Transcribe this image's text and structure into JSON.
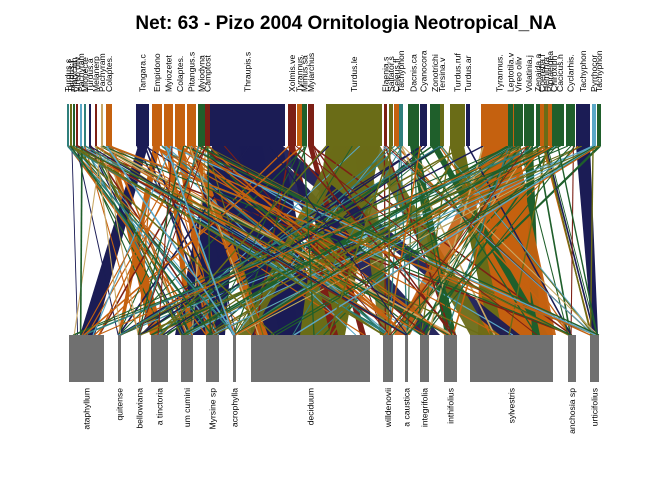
{
  "title": "Net: 63 - Pizo 2004 Ornitologia Neotropical_NA",
  "higher_labels": [
    "Turdus.s",
    "Turdus.f",
    "Platycich",
    "Vireo oliv",
    "Pachyram",
    "Mionecte",
    "Turdus.a",
    "Melanerp",
    "Pachyram",
    "Colaptes.",
    "Tangara.c",
    "Empidono",
    "Myiozetet",
    "Colaptes.",
    "Pitangus.s",
    "Myiodyna",
    "Camptost",
    "Thraupis.s",
    "Xolmis.ve",
    "Tyrannus.",
    "Mimus.sa",
    "Myiarchus",
    "Turdus.le",
    "Elaenia.s",
    "Saltator.s",
    "Celeus.fl",
    "Tachyphon",
    "Dacnis.ca",
    "Cyanocora",
    "Zonotrichi",
    "Tersina.v",
    "Turdus.ruf",
    "Turdus.ar",
    "Tyrannus.",
    "Leptotila.v",
    "Vireo oliv",
    "Volatinia.j",
    "Zenaida.a",
    "Coereba.f",
    "Hemithra",
    "Pipraeidea",
    "Chiroxiph",
    "Cacicus.h",
    "Cyclarhis.",
    "Tachyphon",
    "Pyrrhocor",
    "Tachyphon"
  ],
  "lower_labels": [
    "ataphyllum",
    "quitense",
    "bellowiana",
    "a tinctoria",
    "um cumini",
    "Myrsine sp",
    "acrophylla",
    "deciduum",
    "willdenovii",
    "a caustica",
    "integrifolia",
    "inthifolius",
    "sylvestris",
    "anchosia sp",
    "urticifolius"
  ],
  "colors": {
    "lower_box": "#707070",
    "navy": "#1b1c55",
    "orange": "#c5610f",
    "olive": "#6a6c17",
    "green": "#1f5f2b",
    "darkred": "#7d1f15",
    "teal": "#2f7f7c",
    "lightblue": "#5aa8c7",
    "tan": "#c8a866",
    "purple": "#5b3b78"
  }
}
